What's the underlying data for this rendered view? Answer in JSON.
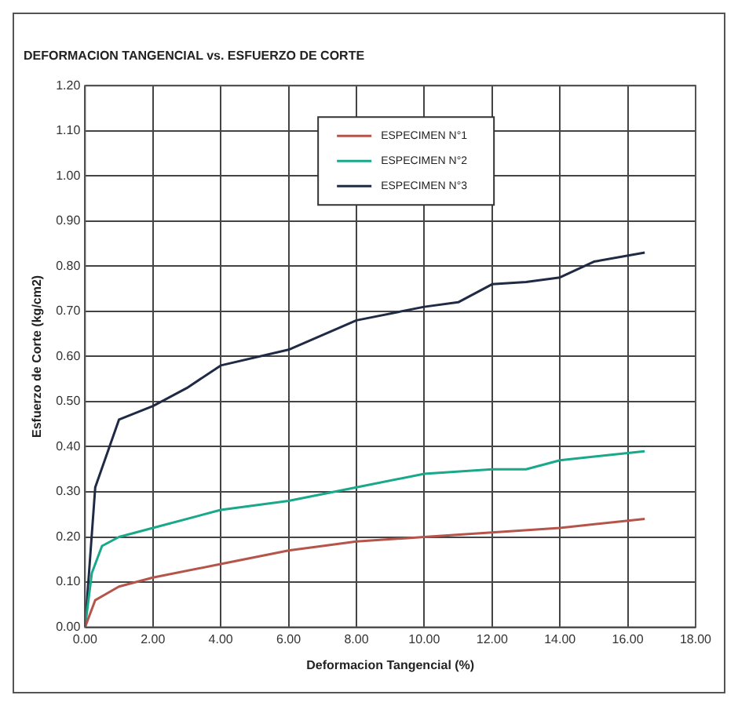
{
  "chart_data": {
    "type": "line",
    "title": "DEFORMACION TANGENCIAL vs. ESFUERZO DE CORTE",
    "xlabel": "Deformacion Tangencial (%)",
    "ylabel": "Esfuerzo de Corte (kg/cm2)",
    "xlim": [
      0,
      18
    ],
    "xticks": [
      {
        "value": 0,
        "label": "0.00"
      },
      {
        "value": 2,
        "label": "2.00"
      },
      {
        "value": 4,
        "label": "4.00"
      },
      {
        "value": 6,
        "label": "6.00"
      },
      {
        "value": 8,
        "label": "8.00"
      },
      {
        "value": 10,
        "label": "10.00"
      },
      {
        "value": 12,
        "label": "12.00"
      },
      {
        "value": 14,
        "label": "14.00"
      },
      {
        "value": 16,
        "label": "16.00"
      },
      {
        "value": 18,
        "label": "18.00"
      }
    ],
    "ylim": [
      0,
      1.2
    ],
    "yticks": [
      {
        "value": 0,
        "label": "0.00"
      },
      {
        "value": 0.1,
        "label": "0.10"
      },
      {
        "value": 0.2,
        "label": "0.20"
      },
      {
        "value": 0.3,
        "label": "0.30"
      },
      {
        "value": 0.4,
        "label": "0.40"
      },
      {
        "value": 0.5,
        "label": "0.50"
      },
      {
        "value": 0.6,
        "label": "0.60"
      },
      {
        "value": 0.7,
        "label": "0.70"
      },
      {
        "value": 0.8,
        "label": "0.80"
      },
      {
        "value": 0.9,
        "label": "0.90"
      },
      {
        "value": 1,
        "label": "1.00"
      },
      {
        "value": 1.1,
        "label": "1.10"
      },
      {
        "value": 1.2,
        "label": "1.20"
      }
    ],
    "grid": true,
    "legend": "top",
    "marker": "none",
    "line_style": "solid",
    "series": [
      {
        "name": "ESPECIMEN N°1",
        "color": "#b5544a",
        "x": [
          0,
          0.3,
          1,
          2,
          4,
          6,
          8,
          10,
          12,
          14,
          16.5
        ],
        "values": [
          0,
          0.06,
          0.09,
          0.11,
          0.14,
          0.17,
          0.19,
          0.2,
          0.21,
          0.22,
          0.24
        ]
      },
      {
        "name": "ESPECIMEN N°2",
        "color": "#1aa88a",
        "x": [
          0,
          0.2,
          0.5,
          1,
          2,
          4,
          6,
          8,
          10,
          12,
          13,
          14,
          16.5
        ],
        "values": [
          0,
          0.12,
          0.18,
          0.2,
          0.22,
          0.26,
          0.28,
          0.31,
          0.34,
          0.35,
          0.35,
          0.37,
          0.39
        ]
      },
      {
        "name": "ESPECIMEN N°3",
        "color": "#1f2a44",
        "x": [
          0,
          0.3,
          1,
          2,
          3,
          4,
          6,
          8,
          10,
          11,
          12,
          13,
          14,
          15,
          16.5
        ],
        "values": [
          0,
          0.31,
          0.46,
          0.49,
          0.53,
          0.58,
          0.615,
          0.68,
          0.71,
          0.72,
          0.76,
          0.765,
          0.775,
          0.81,
          0.83
        ]
      }
    ]
  }
}
